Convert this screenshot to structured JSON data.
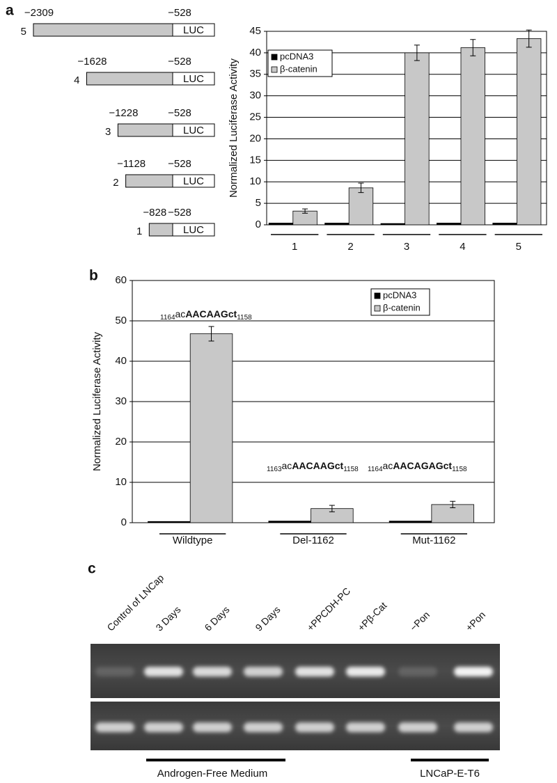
{
  "panel_labels": [
    "a",
    "b",
    "c"
  ],
  "constructs": [
    {
      "label": "5",
      "start": "−2309",
      "end": "−528",
      "reporter": "LUC"
    },
    {
      "label": "4",
      "start": "−1628",
      "end": "−528",
      "reporter": "LUC"
    },
    {
      "label": "3",
      "start": "−1228",
      "end": "−528",
      "reporter": "LUC"
    },
    {
      "label": "2",
      "start": "−1128",
      "end": "−528",
      "reporter": "LUC"
    },
    {
      "label": "1",
      "start": "−828",
      "end": "−528",
      "reporter": "LUC"
    }
  ],
  "chart_data": [
    {
      "type": "bar",
      "y_label": "Normalized Luciferase Activity",
      "categories": [
        "1",
        "2",
        "3",
        "4",
        "5"
      ],
      "series": [
        {
          "name": "pcDNA3",
          "color": "#000000",
          "values": [
            0.4,
            0.4,
            0.3,
            0.4,
            0.4
          ]
        },
        {
          "name": "β-catenin",
          "color": "#c8c8c8",
          "values": [
            3.2,
            8.6,
            40,
            41.2,
            43.3
          ],
          "errors": [
            0.5,
            1.1,
            1.8,
            1.9,
            2.0
          ]
        }
      ],
      "ylim": [
        0,
        45
      ],
      "yticks": [
        0,
        5,
        10,
        15,
        20,
        25,
        30,
        35,
        40,
        45
      ],
      "grid": true,
      "legend": "top-left"
    },
    {
      "type": "bar",
      "y_label": "Normalized Luciferase Activity",
      "categories": [
        "Wildtype",
        "Del-1162",
        "Mut-1162"
      ],
      "series": [
        {
          "name": "pcDNA3",
          "color": "#000000",
          "values": [
            0.3,
            0.4,
            0.4
          ]
        },
        {
          "name": "β-catenin",
          "color": "#c8c8c8",
          "values": [
            46.8,
            3.5,
            4.5
          ],
          "errors": [
            1.8,
            0.8,
            0.8
          ]
        }
      ],
      "annotations": [
        {
          "sub_left": "1164",
          "pre": "ac",
          "bold": "AACAAGct",
          "sub_right": "1158"
        },
        {
          "sub_left": "1163",
          "pre": "ac",
          "bold": "AACAAGct",
          "sub_right": "1158"
        },
        {
          "sub_left": "1164",
          "pre": "ac",
          "bold": "AACAGAGct",
          "sub_right": "1158"
        }
      ],
      "ylim": [
        0,
        60
      ],
      "yticks": [
        0,
        10,
        20,
        30,
        40,
        50,
        60
      ],
      "grid": true,
      "legend": "top-right"
    }
  ],
  "gel": {
    "lanes": [
      "Control of LNCap",
      "3 Days",
      "6 Days",
      "9 Days",
      "+PPCDH-PC",
      "+Pβ-Cat",
      "−Pon",
      "+Pon"
    ],
    "groups": [
      "Androgen-Free Medium",
      "LNCaP-E-T6"
    ]
  }
}
